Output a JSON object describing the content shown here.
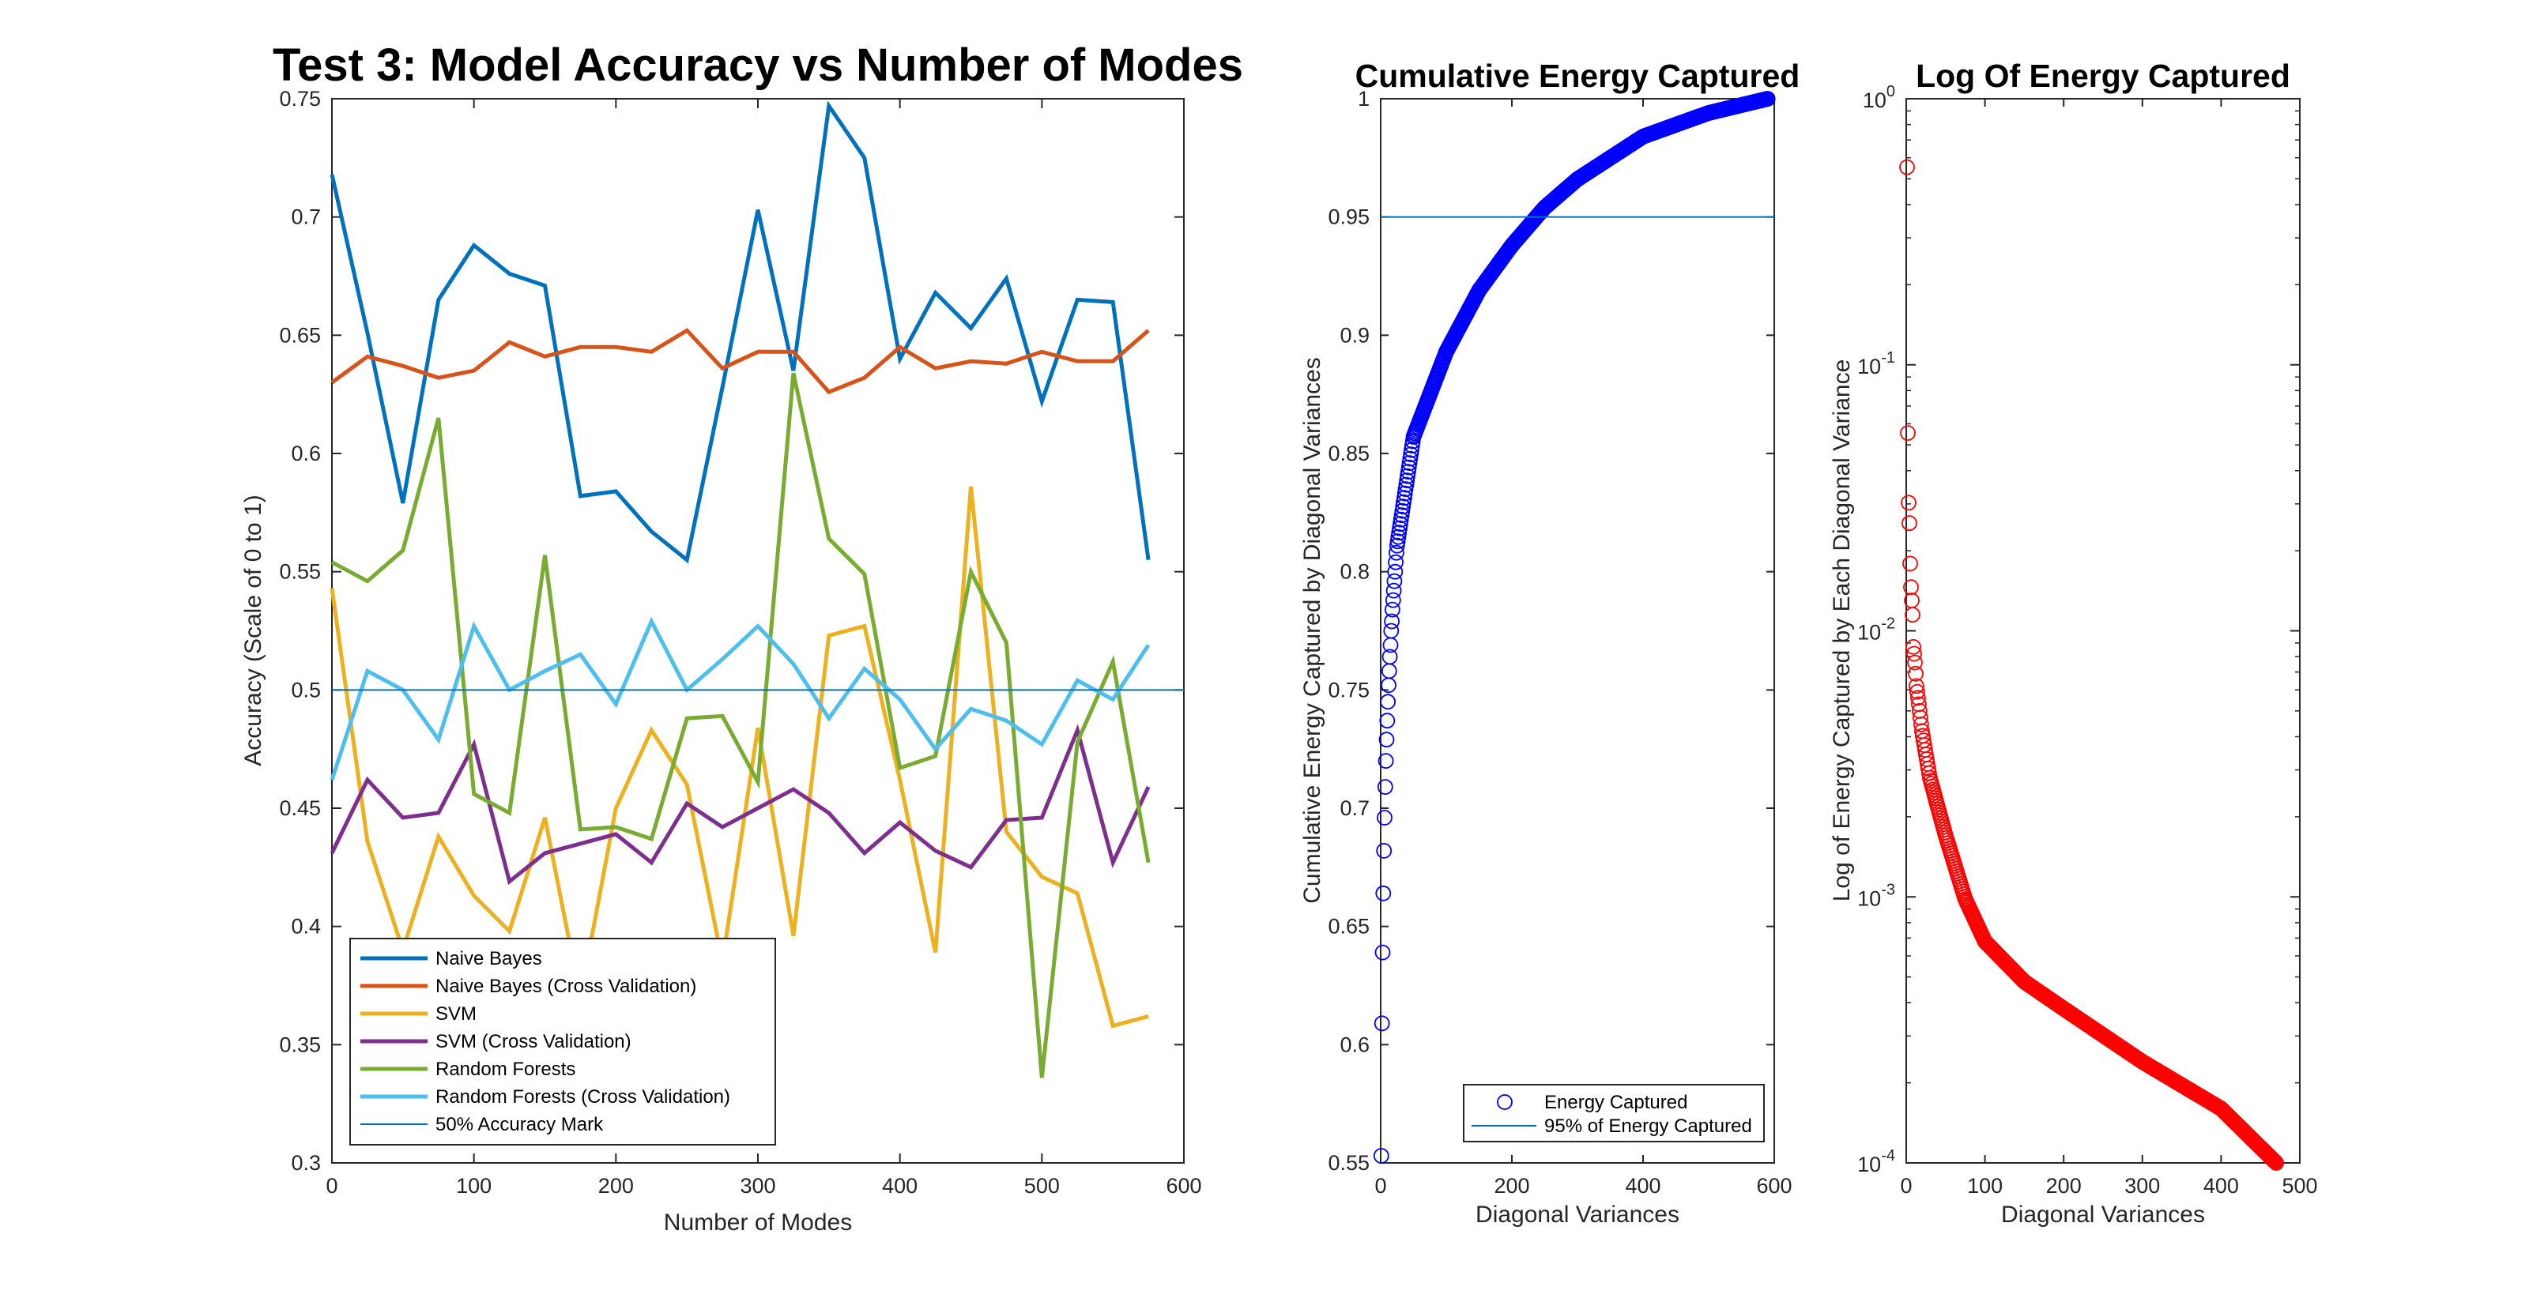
{
  "chart_data": [
    {
      "type": "line",
      "title": "Test 3: Model Accuracy vs Number of Modes",
      "xlabel": "Number of Modes",
      "ylabel": "Accuracy (Scale of 0 to 1)",
      "xlim": [
        0,
        600
      ],
      "ylim": [
        0.3,
        0.75
      ],
      "xticks": [
        "0",
        "100",
        "200",
        "300",
        "400",
        "500",
        "600"
      ],
      "yticks": [
        "0.3",
        "0.35",
        "0.4",
        "0.45",
        "0.5",
        "0.55",
        "0.6",
        "0.65",
        "0.7",
        "0.75"
      ],
      "grid": false,
      "legend_position": "bottom-left",
      "x": [
        0,
        25,
        50,
        75,
        100,
        125,
        150,
        175,
        200,
        225,
        250,
        275,
        300,
        325,
        350,
        375,
        400,
        425,
        450,
        475,
        500,
        525,
        550,
        575
      ],
      "series": [
        {
          "name": "Naive Bayes",
          "color": "#0072BD",
          "width": 5,
          "values": [
            0.718,
            0.651,
            0.579,
            0.665,
            0.688,
            0.676,
            0.671,
            0.582,
            0.584,
            0.567,
            0.555,
            0.628,
            0.703,
            0.635,
            0.747,
            0.725,
            0.64,
            0.668,
            0.653,
            0.674,
            0.622,
            0.665,
            0.664,
            0.555
          ]
        },
        {
          "name": "Naive Bayes (Cross Validation)",
          "color": "#D95319",
          "width": 5,
          "values": [
            0.63,
            0.641,
            0.637,
            0.632,
            0.635,
            0.647,
            0.641,
            0.645,
            0.645,
            0.643,
            0.652,
            0.636,
            0.643,
            0.643,
            0.626,
            0.632,
            0.645,
            0.636,
            0.639,
            0.638,
            0.643,
            0.639,
            0.639,
            0.652
          ]
        },
        {
          "name": "SVM",
          "color": "#EDB120",
          "width": 5,
          "values": [
            0.543,
            0.436,
            0.39,
            0.438,
            0.413,
            0.398,
            0.446,
            0.37,
            0.45,
            0.483,
            0.46,
            0.385,
            0.484,
            0.396,
            0.523,
            0.527,
            0.462,
            0.389,
            0.586,
            0.44,
            0.421,
            0.414,
            0.358,
            0.362
          ]
        },
        {
          "name": "SVM (Cross Validation)",
          "color": "#7E2F8E",
          "width": 5,
          "values": [
            0.431,
            0.462,
            0.446,
            0.448,
            0.477,
            0.419,
            0.431,
            0.435,
            0.439,
            0.427,
            0.452,
            0.442,
            0.45,
            0.458,
            0.448,
            0.431,
            0.444,
            0.432,
            0.425,
            0.445,
            0.446,
            0.483,
            0.427,
            0.459
          ]
        },
        {
          "name": "Random Forests",
          "color": "#77AC30",
          "width": 5,
          "values": [
            0.554,
            0.546,
            0.559,
            0.615,
            0.456,
            0.448,
            0.557,
            0.441,
            0.442,
            0.437,
            0.488,
            0.489,
            0.461,
            0.634,
            0.564,
            0.549,
            0.467,
            0.472,
            0.55,
            0.52,
            0.336,
            0.478,
            0.512,
            0.427
          ]
        },
        {
          "name": "Random Forests (Cross Validation)",
          "color": "#4DBEEE",
          "width": 5,
          "values": [
            0.462,
            0.508,
            0.5,
            0.479,
            0.527,
            0.5,
            0.508,
            0.515,
            0.494,
            0.529,
            0.5,
            0.513,
            0.527,
            0.511,
            0.488,
            0.509,
            0.496,
            0.475,
            0.492,
            0.487,
            0.477,
            0.504,
            0.496,
            0.519
          ]
        },
        {
          "name": "50% Accuracy Mark",
          "color": "#0072BD",
          "width": 2,
          "hline": 0.5
        }
      ]
    },
    {
      "type": "scatter",
      "title": "Cumulative Energy Captured",
      "xlabel": "Diagonal Variances",
      "ylabel": "Cumulative Energy Captured by Diagonal Variances",
      "xlim": [
        0,
        600
      ],
      "ylim": [
        0.55,
        1
      ],
      "xticks": [
        "0",
        "200",
        "400",
        "600"
      ],
      "yticks": [
        "0.55",
        "0.6",
        "0.65",
        "0.7",
        "0.75",
        "0.8",
        "0.85",
        "0.9",
        "0.95",
        "1"
      ],
      "grid": false,
      "legend_position": "bottom-right",
      "n_points": 590,
      "x_start": 1,
      "x_end": 590,
      "first_values": [
        0.553,
        0.609,
        0.639,
        0.664,
        0.682,
        0.696,
        0.709,
        0.72,
        0.729,
        0.737,
        0.745,
        0.752,
        0.758,
        0.764,
        0.769,
        0.775,
        0.779,
        0.784,
        0.788,
        0.792,
        0.796,
        0.8,
        0.804,
        0.808,
        0.811
      ],
      "reference_values": {
        "x": [
          50,
          100,
          150,
          200,
          250,
          300,
          400,
          500,
          590
        ],
        "y": [
          0.857,
          0.893,
          0.919,
          0.938,
          0.954,
          0.966,
          0.984,
          0.994,
          1.0
        ]
      },
      "series": [
        {
          "name": "Energy Captured",
          "color": "#0000FF",
          "marker": "circle"
        },
        {
          "name": "95% of Energy Captured",
          "color": "#0072BD",
          "hline": 0.95
        }
      ]
    },
    {
      "type": "scatter",
      "title": "Log Of Energy Captured",
      "xlabel": "Diagonal Variances",
      "ylabel": "Log of Energy Captured by Each Diagonal Variance",
      "xlim": [
        0,
        500
      ],
      "ylim": [
        0.0001,
        1
      ],
      "yscale": "log",
      "xticks": [
        "0",
        "100",
        "200",
        "300",
        "400",
        "500"
      ],
      "yticks": [
        {
          "base": "10",
          "exp": "-4"
        },
        {
          "base": "10",
          "exp": "-3"
        },
        {
          "base": "10",
          "exp": "-2"
        },
        {
          "base": "10",
          "exp": "-1"
        },
        {
          "base": "10",
          "exp": "0"
        }
      ],
      "grid": false,
      "n_points": 470,
      "x_start": 1,
      "x_end": 470,
      "first_values": [
        0.553,
        0.0554,
        0.0303,
        0.0254,
        0.0179,
        0.0146,
        0.013,
        0.0115,
        0.0087,
        0.0082,
        0.0076,
        0.0069,
        0.0062,
        0.0059,
        0.0056,
        0.0053
      ],
      "reference_values": {
        "x": [
          16,
          20,
          30,
          50,
          75,
          100,
          150,
          200,
          300,
          400,
          470
        ],
        "y": [
          0.0053,
          0.0042,
          0.0028,
          0.0017,
          0.00098,
          0.00068,
          0.00048,
          0.00038,
          0.00024,
          0.00016,
          0.0001
        ]
      },
      "series": [
        {
          "name": "",
          "color": "#FF0000",
          "marker": "circle"
        }
      ]
    }
  ]
}
